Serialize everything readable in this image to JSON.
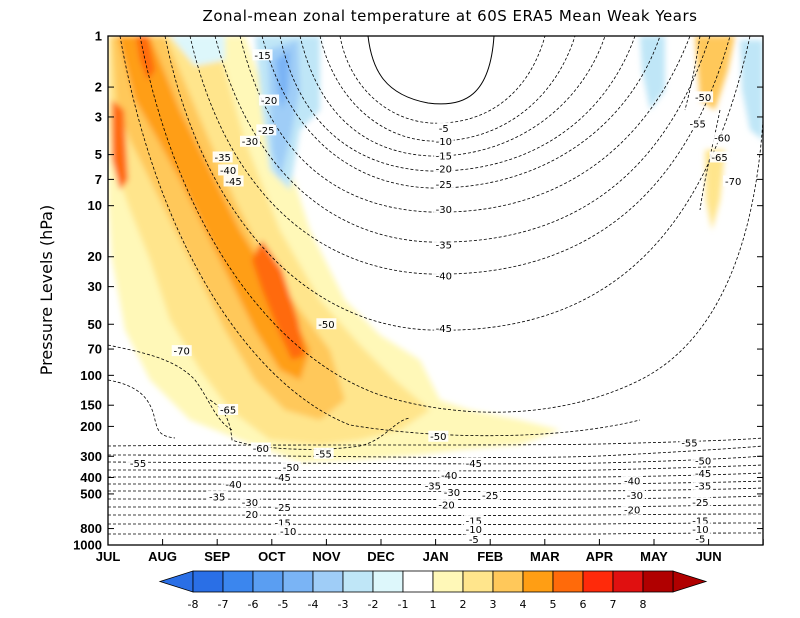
{
  "chart_data": {
    "type": "heatmap",
    "title": "Zonal-mean zonal temperature at 60S ERA5 Mean Weak Years",
    "ylabel": "Pressure Levels (hPa)",
    "xlabel": "",
    "x_ticks": [
      "JUL",
      "AUG",
      "SEP",
      "OCT",
      "NOV",
      "DEC",
      "JAN",
      "FEB",
      "MAR",
      "APR",
      "MAY",
      "JUN"
    ],
    "y_ticks": [
      1,
      2,
      3,
      5,
      7,
      10,
      20,
      30,
      50,
      70,
      100,
      150,
      200,
      300,
      400,
      500,
      800,
      1000
    ],
    "ylim": [
      1000,
      1
    ],
    "y_scale": "log",
    "colorbar": {
      "labels": [
        "-8",
        "-7",
        "-6",
        "-5",
        "-4",
        "-3",
        "-2",
        "-1",
        "1",
        "2",
        "3",
        "4",
        "5",
        "6",
        "7",
        "8"
      ],
      "colors": [
        "#2a6fe6",
        "#3b86ee",
        "#5a9ef2",
        "#7ab4f5",
        "#9fcdf7",
        "#bfe6f7",
        "#ddf7fb",
        "#ffffff",
        "#fff8b8",
        "#ffe58c",
        "#ffc85a",
        "#ff9e14",
        "#ff6a0a",
        "#ff2a0a",
        "#e01010",
        "#b00000"
      ],
      "extend": "both"
    },
    "shading_anomalies": [
      {
        "month": 0.2,
        "pressure": 5,
        "value": 5
      },
      {
        "month": 0.8,
        "pressure": 3,
        "value": 5
      },
      {
        "month": 1.7,
        "pressure": 7,
        "value": 4
      },
      {
        "month": 2.4,
        "pressure": 12,
        "value": 5
      },
      {
        "month": 2.9,
        "pressure": 35,
        "value": 6
      },
      {
        "month": 3.3,
        "pressure": 70,
        "value": 6
      },
      {
        "month": 3.8,
        "pressure": 120,
        "value": 3
      },
      {
        "month": 4.6,
        "pressure": 150,
        "value": 2
      },
      {
        "month": 5.8,
        "pressure": 180,
        "value": 1
      },
      {
        "month": 3.1,
        "pressure": 4,
        "value": -4
      },
      {
        "month": 2.4,
        "pressure": 1.3,
        "value": -3
      },
      {
        "month": 1.2,
        "pressure": 1.2,
        "value": -2
      },
      {
        "month": 11.1,
        "pressure": 1.5,
        "value": 3
      },
      {
        "month": 11.6,
        "pressure": 2.5,
        "value": -2
      }
    ],
    "contour_labels": [
      {
        "label": "-15",
        "month": 2.83,
        "pressure": 1.3
      },
      {
        "label": "-20",
        "month": 2.95,
        "pressure": 2.4
      },
      {
        "label": "-25",
        "month": 2.9,
        "pressure": 3.6
      },
      {
        "label": "-30",
        "month": 2.6,
        "pressure": 4.2
      },
      {
        "label": "-35",
        "month": 2.1,
        "pressure": 5.2
      },
      {
        "label": "-40",
        "month": 2.2,
        "pressure": 6.2
      },
      {
        "label": "-45",
        "month": 2.3,
        "pressure": 7.2
      },
      {
        "label": "-50",
        "month": 4.0,
        "pressure": 50
      },
      {
        "label": "-70",
        "month": 1.35,
        "pressure": 72
      },
      {
        "label": "-65",
        "month": 2.2,
        "pressure": 160
      },
      {
        "label": "-60",
        "month": 2.8,
        "pressure": 270
      },
      {
        "label": "-55",
        "month": 3.95,
        "pressure": 290
      },
      {
        "label": "-5",
        "month": 6.15,
        "pressure": 3.5
      },
      {
        "label": "-10",
        "month": 6.15,
        "pressure": 4.2
      },
      {
        "label": "-15",
        "month": 6.15,
        "pressure": 5.1
      },
      {
        "label": "-20",
        "month": 6.15,
        "pressure": 6.1
      },
      {
        "label": "-25",
        "month": 6.15,
        "pressure": 7.5
      },
      {
        "label": "-30",
        "month": 6.15,
        "pressure": 10.5
      },
      {
        "label": "-35",
        "month": 6.15,
        "pressure": 17
      },
      {
        "label": "-40",
        "month": 6.15,
        "pressure": 26
      },
      {
        "label": "-45",
        "month": 6.15,
        "pressure": 53
      },
      {
        "label": "-50",
        "month": 6.05,
        "pressure": 230
      },
      {
        "label": "-45",
        "month": 6.7,
        "pressure": 330
      },
      {
        "label": "-40",
        "month": 6.25,
        "pressure": 390
      },
      {
        "label": "-35",
        "month": 5.95,
        "pressure": 450
      },
      {
        "label": "-30",
        "month": 6.3,
        "pressure": 490
      },
      {
        "label": "-25",
        "month": 7.0,
        "pressure": 510
      },
      {
        "label": "-20",
        "month": 6.2,
        "pressure": 580
      },
      {
        "label": "-15",
        "month": 6.7,
        "pressure": 720
      },
      {
        "label": "-10",
        "month": 6.7,
        "pressure": 810
      },
      {
        "label": "-5",
        "month": 6.7,
        "pressure": 930
      },
      {
        "label": "-55",
        "month": 0.55,
        "pressure": 330
      },
      {
        "label": "-50",
        "month": 3.35,
        "pressure": 350
      },
      {
        "label": "-45",
        "month": 3.2,
        "pressure": 400
      },
      {
        "label": "-40",
        "month": 2.3,
        "pressure": 440
      },
      {
        "label": "-35",
        "month": 2.0,
        "pressure": 520
      },
      {
        "label": "-30",
        "month": 2.6,
        "pressure": 560
      },
      {
        "label": "-25",
        "month": 3.2,
        "pressure": 600
      },
      {
        "label": "-20",
        "month": 2.6,
        "pressure": 660
      },
      {
        "label": "-15",
        "month": 3.2,
        "pressure": 740
      },
      {
        "label": "-10",
        "month": 3.3,
        "pressure": 830
      },
      {
        "label": "-55",
        "month": 10.65,
        "pressure": 250
      },
      {
        "label": "-50",
        "month": 10.9,
        "pressure": 320
      },
      {
        "label": "-45",
        "month": 10.9,
        "pressure": 380
      },
      {
        "label": "-40",
        "month": 9.6,
        "pressure": 420
      },
      {
        "label": "-35",
        "month": 10.9,
        "pressure": 450
      },
      {
        "label": "-30",
        "month": 9.65,
        "pressure": 510
      },
      {
        "label": "-25",
        "month": 10.85,
        "pressure": 560
      },
      {
        "label": "-20",
        "month": 9.6,
        "pressure": 620
      },
      {
        "label": "-15",
        "month": 10.85,
        "pressure": 720
      },
      {
        "label": "-10",
        "month": 10.85,
        "pressure": 810
      },
      {
        "label": "-5",
        "month": 10.85,
        "pressure": 920
      },
      {
        "label": "-50",
        "month": 10.9,
        "pressure": 2.3
      },
      {
        "label": "-55",
        "month": 10.8,
        "pressure": 3.3
      },
      {
        "label": "-60",
        "month": 11.25,
        "pressure": 4
      },
      {
        "label": "-65",
        "month": 11.2,
        "pressure": 5.2
      },
      {
        "label": "-70",
        "month": 11.45,
        "pressure": 7.2
      }
    ]
  }
}
